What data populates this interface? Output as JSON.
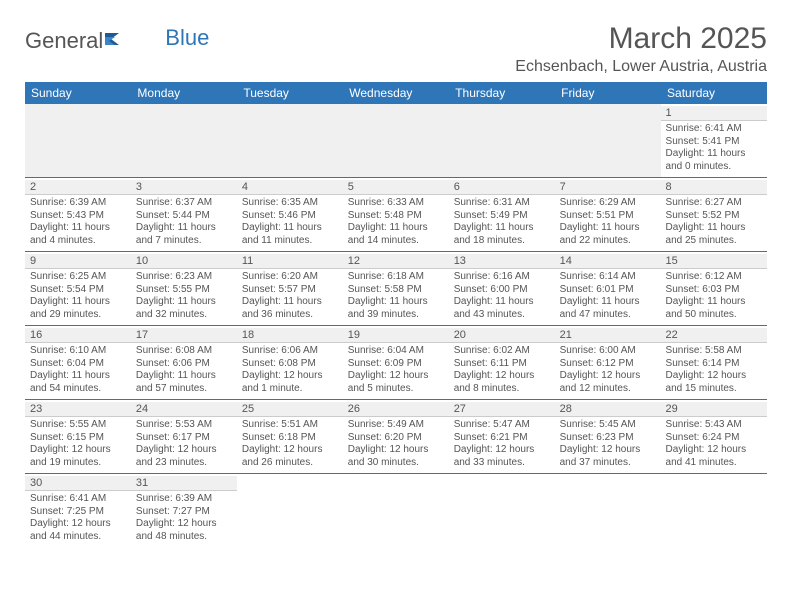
{
  "brand": {
    "general": "General",
    "blue": "Blue"
  },
  "title": "March 2025",
  "location": "Echsenbach, Lower Austria, Austria",
  "style": {
    "header_bg": "#2f76b8",
    "header_fg": "#ffffff",
    "row_divider": "#2f76b8",
    "daynum_bg": "#f0f0f0",
    "text_color": "#555555",
    "page_bg": "#ffffff",
    "title_fontsize": 30,
    "location_fontsize": 16,
    "dayhdr_fontsize": 12,
    "cell_fontsize": 10
  },
  "day_headers": [
    "Sunday",
    "Monday",
    "Tuesday",
    "Wednesday",
    "Thursday",
    "Friday",
    "Saturday"
  ],
  "weeks": [
    [
      null,
      null,
      null,
      null,
      null,
      null,
      {
        "n": "1",
        "sr": "Sunrise: 6:41 AM",
        "ss": "Sunset: 5:41 PM",
        "dl1": "Daylight: 11 hours",
        "dl2": "and 0 minutes."
      }
    ],
    [
      {
        "n": "2",
        "sr": "Sunrise: 6:39 AM",
        "ss": "Sunset: 5:43 PM",
        "dl1": "Daylight: 11 hours",
        "dl2": "and 4 minutes."
      },
      {
        "n": "3",
        "sr": "Sunrise: 6:37 AM",
        "ss": "Sunset: 5:44 PM",
        "dl1": "Daylight: 11 hours",
        "dl2": "and 7 minutes."
      },
      {
        "n": "4",
        "sr": "Sunrise: 6:35 AM",
        "ss": "Sunset: 5:46 PM",
        "dl1": "Daylight: 11 hours",
        "dl2": "and 11 minutes."
      },
      {
        "n": "5",
        "sr": "Sunrise: 6:33 AM",
        "ss": "Sunset: 5:48 PM",
        "dl1": "Daylight: 11 hours",
        "dl2": "and 14 minutes."
      },
      {
        "n": "6",
        "sr": "Sunrise: 6:31 AM",
        "ss": "Sunset: 5:49 PM",
        "dl1": "Daylight: 11 hours",
        "dl2": "and 18 minutes."
      },
      {
        "n": "7",
        "sr": "Sunrise: 6:29 AM",
        "ss": "Sunset: 5:51 PM",
        "dl1": "Daylight: 11 hours",
        "dl2": "and 22 minutes."
      },
      {
        "n": "8",
        "sr": "Sunrise: 6:27 AM",
        "ss": "Sunset: 5:52 PM",
        "dl1": "Daylight: 11 hours",
        "dl2": "and 25 minutes."
      }
    ],
    [
      {
        "n": "9",
        "sr": "Sunrise: 6:25 AM",
        "ss": "Sunset: 5:54 PM",
        "dl1": "Daylight: 11 hours",
        "dl2": "and 29 minutes."
      },
      {
        "n": "10",
        "sr": "Sunrise: 6:23 AM",
        "ss": "Sunset: 5:55 PM",
        "dl1": "Daylight: 11 hours",
        "dl2": "and 32 minutes."
      },
      {
        "n": "11",
        "sr": "Sunrise: 6:20 AM",
        "ss": "Sunset: 5:57 PM",
        "dl1": "Daylight: 11 hours",
        "dl2": "and 36 minutes."
      },
      {
        "n": "12",
        "sr": "Sunrise: 6:18 AM",
        "ss": "Sunset: 5:58 PM",
        "dl1": "Daylight: 11 hours",
        "dl2": "and 39 minutes."
      },
      {
        "n": "13",
        "sr": "Sunrise: 6:16 AM",
        "ss": "Sunset: 6:00 PM",
        "dl1": "Daylight: 11 hours",
        "dl2": "and 43 minutes."
      },
      {
        "n": "14",
        "sr": "Sunrise: 6:14 AM",
        "ss": "Sunset: 6:01 PM",
        "dl1": "Daylight: 11 hours",
        "dl2": "and 47 minutes."
      },
      {
        "n": "15",
        "sr": "Sunrise: 6:12 AM",
        "ss": "Sunset: 6:03 PM",
        "dl1": "Daylight: 11 hours",
        "dl2": "and 50 minutes."
      }
    ],
    [
      {
        "n": "16",
        "sr": "Sunrise: 6:10 AM",
        "ss": "Sunset: 6:04 PM",
        "dl1": "Daylight: 11 hours",
        "dl2": "and 54 minutes."
      },
      {
        "n": "17",
        "sr": "Sunrise: 6:08 AM",
        "ss": "Sunset: 6:06 PM",
        "dl1": "Daylight: 11 hours",
        "dl2": "and 57 minutes."
      },
      {
        "n": "18",
        "sr": "Sunrise: 6:06 AM",
        "ss": "Sunset: 6:08 PM",
        "dl1": "Daylight: 12 hours",
        "dl2": "and 1 minute."
      },
      {
        "n": "19",
        "sr": "Sunrise: 6:04 AM",
        "ss": "Sunset: 6:09 PM",
        "dl1": "Daylight: 12 hours",
        "dl2": "and 5 minutes."
      },
      {
        "n": "20",
        "sr": "Sunrise: 6:02 AM",
        "ss": "Sunset: 6:11 PM",
        "dl1": "Daylight: 12 hours",
        "dl2": "and 8 minutes."
      },
      {
        "n": "21",
        "sr": "Sunrise: 6:00 AM",
        "ss": "Sunset: 6:12 PM",
        "dl1": "Daylight: 12 hours",
        "dl2": "and 12 minutes."
      },
      {
        "n": "22",
        "sr": "Sunrise: 5:58 AM",
        "ss": "Sunset: 6:14 PM",
        "dl1": "Daylight: 12 hours",
        "dl2": "and 15 minutes."
      }
    ],
    [
      {
        "n": "23",
        "sr": "Sunrise: 5:55 AM",
        "ss": "Sunset: 6:15 PM",
        "dl1": "Daylight: 12 hours",
        "dl2": "and 19 minutes."
      },
      {
        "n": "24",
        "sr": "Sunrise: 5:53 AM",
        "ss": "Sunset: 6:17 PM",
        "dl1": "Daylight: 12 hours",
        "dl2": "and 23 minutes."
      },
      {
        "n": "25",
        "sr": "Sunrise: 5:51 AM",
        "ss": "Sunset: 6:18 PM",
        "dl1": "Daylight: 12 hours",
        "dl2": "and 26 minutes."
      },
      {
        "n": "26",
        "sr": "Sunrise: 5:49 AM",
        "ss": "Sunset: 6:20 PM",
        "dl1": "Daylight: 12 hours",
        "dl2": "and 30 minutes."
      },
      {
        "n": "27",
        "sr": "Sunrise: 5:47 AM",
        "ss": "Sunset: 6:21 PM",
        "dl1": "Daylight: 12 hours",
        "dl2": "and 33 minutes."
      },
      {
        "n": "28",
        "sr": "Sunrise: 5:45 AM",
        "ss": "Sunset: 6:23 PM",
        "dl1": "Daylight: 12 hours",
        "dl2": "and 37 minutes."
      },
      {
        "n": "29",
        "sr": "Sunrise: 5:43 AM",
        "ss": "Sunset: 6:24 PM",
        "dl1": "Daylight: 12 hours",
        "dl2": "and 41 minutes."
      }
    ],
    [
      {
        "n": "30",
        "sr": "Sunrise: 6:41 AM",
        "ss": "Sunset: 7:25 PM",
        "dl1": "Daylight: 12 hours",
        "dl2": "and 44 minutes."
      },
      {
        "n": "31",
        "sr": "Sunrise: 6:39 AM",
        "ss": "Sunset: 7:27 PM",
        "dl1": "Daylight: 12 hours",
        "dl2": "and 48 minutes."
      },
      null,
      null,
      null,
      null,
      null
    ]
  ]
}
